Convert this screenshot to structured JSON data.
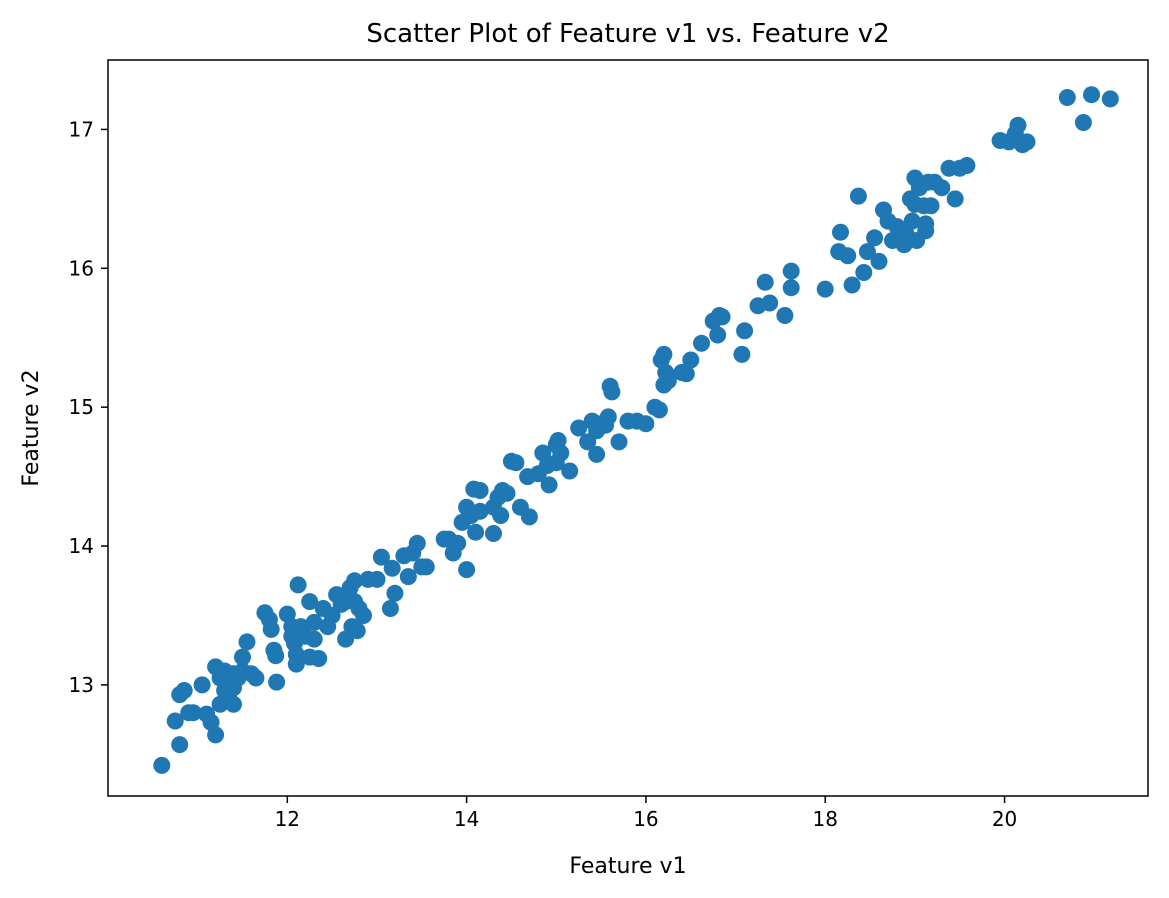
{
  "chart_data": {
    "type": "scatter",
    "title": "Scatter Plot of Feature v1 vs. Feature v2",
    "xlabel": "Feature v1",
    "ylabel": "Feature v2",
    "xlim": [
      10.0,
      21.6
    ],
    "ylim": [
      12.2,
      17.5
    ],
    "xticks": [
      12,
      14,
      16,
      18,
      20
    ],
    "yticks": [
      13,
      14,
      15,
      16,
      17
    ],
    "grid": false,
    "legend": "none",
    "marker_color": "#1f77b4",
    "series": [
      {
        "points": [
          [
            10.6,
            12.42
          ],
          [
            10.75,
            12.74
          ],
          [
            10.8,
            12.57
          ],
          [
            10.8,
            12.93
          ],
          [
            10.85,
            12.96
          ],
          [
            10.9,
            12.8
          ],
          [
            10.95,
            12.8
          ],
          [
            11.05,
            13.0
          ],
          [
            11.1,
            12.79
          ],
          [
            11.15,
            12.73
          ],
          [
            11.2,
            13.13
          ],
          [
            11.2,
            12.64
          ],
          [
            11.25,
            13.05
          ],
          [
            11.25,
            12.86
          ],
          [
            11.3,
            13.1
          ],
          [
            11.3,
            12.96
          ],
          [
            11.35,
            13.0
          ],
          [
            11.35,
            12.9
          ],
          [
            11.4,
            13.08
          ],
          [
            11.4,
            12.98
          ],
          [
            11.4,
            12.86
          ],
          [
            11.45,
            13.05
          ],
          [
            11.5,
            13.2
          ],
          [
            11.5,
            13.1
          ],
          [
            11.55,
            13.31
          ],
          [
            11.6,
            13.08
          ],
          [
            11.65,
            13.05
          ],
          [
            11.75,
            13.52
          ],
          [
            11.8,
            13.47
          ],
          [
            11.82,
            13.4
          ],
          [
            11.85,
            13.25
          ],
          [
            11.87,
            13.21
          ],
          [
            11.88,
            13.02
          ],
          [
            12.0,
            13.51
          ],
          [
            12.05,
            13.42
          ],
          [
            12.05,
            13.35
          ],
          [
            12.08,
            13.3
          ],
          [
            12.1,
            13.22
          ],
          [
            12.1,
            13.15
          ],
          [
            12.12,
            13.72
          ],
          [
            12.15,
            13.42
          ],
          [
            12.2,
            13.35
          ],
          [
            12.25,
            13.2
          ],
          [
            12.25,
            13.6
          ],
          [
            12.3,
            13.45
          ],
          [
            12.3,
            13.33
          ],
          [
            12.35,
            13.19
          ],
          [
            12.4,
            13.55
          ],
          [
            12.45,
            13.42
          ],
          [
            12.5,
            13.5
          ],
          [
            12.55,
            13.65
          ],
          [
            12.6,
            13.58
          ],
          [
            12.65,
            13.6
          ],
          [
            12.65,
            13.33
          ],
          [
            12.7,
            13.7
          ],
          [
            12.72,
            13.42
          ],
          [
            12.75,
            13.75
          ],
          [
            12.75,
            13.6
          ],
          [
            12.78,
            13.39
          ],
          [
            12.8,
            13.55
          ],
          [
            12.85,
            13.5
          ],
          [
            12.9,
            13.76
          ],
          [
            13.0,
            13.76
          ],
          [
            13.05,
            13.92
          ],
          [
            13.15,
            13.55
          ],
          [
            13.17,
            13.84
          ],
          [
            13.2,
            13.66
          ],
          [
            13.3,
            13.93
          ],
          [
            13.35,
            13.78
          ],
          [
            13.4,
            13.95
          ],
          [
            13.45,
            14.02
          ],
          [
            13.5,
            13.85
          ],
          [
            13.55,
            13.85
          ],
          [
            13.75,
            14.05
          ],
          [
            13.8,
            14.05
          ],
          [
            13.85,
            13.95
          ],
          [
            13.9,
            14.02
          ],
          [
            13.95,
            14.17
          ],
          [
            14.0,
            14.28
          ],
          [
            14.0,
            13.83
          ],
          [
            14.05,
            14.22
          ],
          [
            14.08,
            14.41
          ],
          [
            14.1,
            14.1
          ],
          [
            14.15,
            14.4
          ],
          [
            14.15,
            14.25
          ],
          [
            14.3,
            14.09
          ],
          [
            14.3,
            14.28
          ],
          [
            14.35,
            14.35
          ],
          [
            14.38,
            14.22
          ],
          [
            14.4,
            14.4
          ],
          [
            14.45,
            14.38
          ],
          [
            14.5,
            14.61
          ],
          [
            14.55,
            14.6
          ],
          [
            14.6,
            14.28
          ],
          [
            14.68,
            14.5
          ],
          [
            14.7,
            14.21
          ],
          [
            14.8,
            14.52
          ],
          [
            14.85,
            14.67
          ],
          [
            14.9,
            14.58
          ],
          [
            14.92,
            14.44
          ],
          [
            15.0,
            14.73
          ],
          [
            15.0,
            14.6
          ],
          [
            15.02,
            14.76
          ],
          [
            15.05,
            14.67
          ],
          [
            15.15,
            14.54
          ],
          [
            15.25,
            14.85
          ],
          [
            15.35,
            14.75
          ],
          [
            15.4,
            14.9
          ],
          [
            15.45,
            14.66
          ],
          [
            15.45,
            14.83
          ],
          [
            15.5,
            14.88
          ],
          [
            15.55,
            14.87
          ],
          [
            15.58,
            14.93
          ],
          [
            15.6,
            15.15
          ],
          [
            15.62,
            15.11
          ],
          [
            15.7,
            14.75
          ],
          [
            15.8,
            14.9
          ],
          [
            15.9,
            14.9
          ],
          [
            16.0,
            14.88
          ],
          [
            16.1,
            15.0
          ],
          [
            16.15,
            14.98
          ],
          [
            16.17,
            15.34
          ],
          [
            16.2,
            15.38
          ],
          [
            16.2,
            15.16
          ],
          [
            16.22,
            15.25
          ],
          [
            16.25,
            15.19
          ],
          [
            16.4,
            15.25
          ],
          [
            16.45,
            15.24
          ],
          [
            16.5,
            15.34
          ],
          [
            16.62,
            15.46
          ],
          [
            16.75,
            15.62
          ],
          [
            16.8,
            15.52
          ],
          [
            16.82,
            15.66
          ],
          [
            16.85,
            15.65
          ],
          [
            17.07,
            15.38
          ],
          [
            17.1,
            15.55
          ],
          [
            17.25,
            15.73
          ],
          [
            17.33,
            15.9
          ],
          [
            17.38,
            15.75
          ],
          [
            17.55,
            15.66
          ],
          [
            17.62,
            15.98
          ],
          [
            17.62,
            15.86
          ],
          [
            18.0,
            15.85
          ],
          [
            18.15,
            16.12
          ],
          [
            18.17,
            16.26
          ],
          [
            18.25,
            16.09
          ],
          [
            18.3,
            15.88
          ],
          [
            18.37,
            16.52
          ],
          [
            18.43,
            15.97
          ],
          [
            18.47,
            16.12
          ],
          [
            18.55,
            16.22
          ],
          [
            18.6,
            16.05
          ],
          [
            18.65,
            16.42
          ],
          [
            18.7,
            16.34
          ],
          [
            18.75,
            16.2
          ],
          [
            18.8,
            16.3
          ],
          [
            18.85,
            16.22
          ],
          [
            18.88,
            16.17
          ],
          [
            18.9,
            16.25
          ],
          [
            18.95,
            16.5
          ],
          [
            18.97,
            16.34
          ],
          [
            19.0,
            16.65
          ],
          [
            19.0,
            16.46
          ],
          [
            19.02,
            16.2
          ],
          [
            19.05,
            16.58
          ],
          [
            19.1,
            16.45
          ],
          [
            19.12,
            16.32
          ],
          [
            19.12,
            16.27
          ],
          [
            19.15,
            16.62
          ],
          [
            19.18,
            16.45
          ],
          [
            19.22,
            16.62
          ],
          [
            19.3,
            16.58
          ],
          [
            19.38,
            16.72
          ],
          [
            19.45,
            16.5
          ],
          [
            19.5,
            16.72
          ],
          [
            19.58,
            16.74
          ],
          [
            19.95,
            16.92
          ],
          [
            20.05,
            16.91
          ],
          [
            20.12,
            16.97
          ],
          [
            20.15,
            17.03
          ],
          [
            20.2,
            16.89
          ],
          [
            20.25,
            16.91
          ],
          [
            20.7,
            17.23
          ],
          [
            20.88,
            17.05
          ],
          [
            20.97,
            17.25
          ],
          [
            21.18,
            17.22
          ]
        ]
      }
    ]
  }
}
